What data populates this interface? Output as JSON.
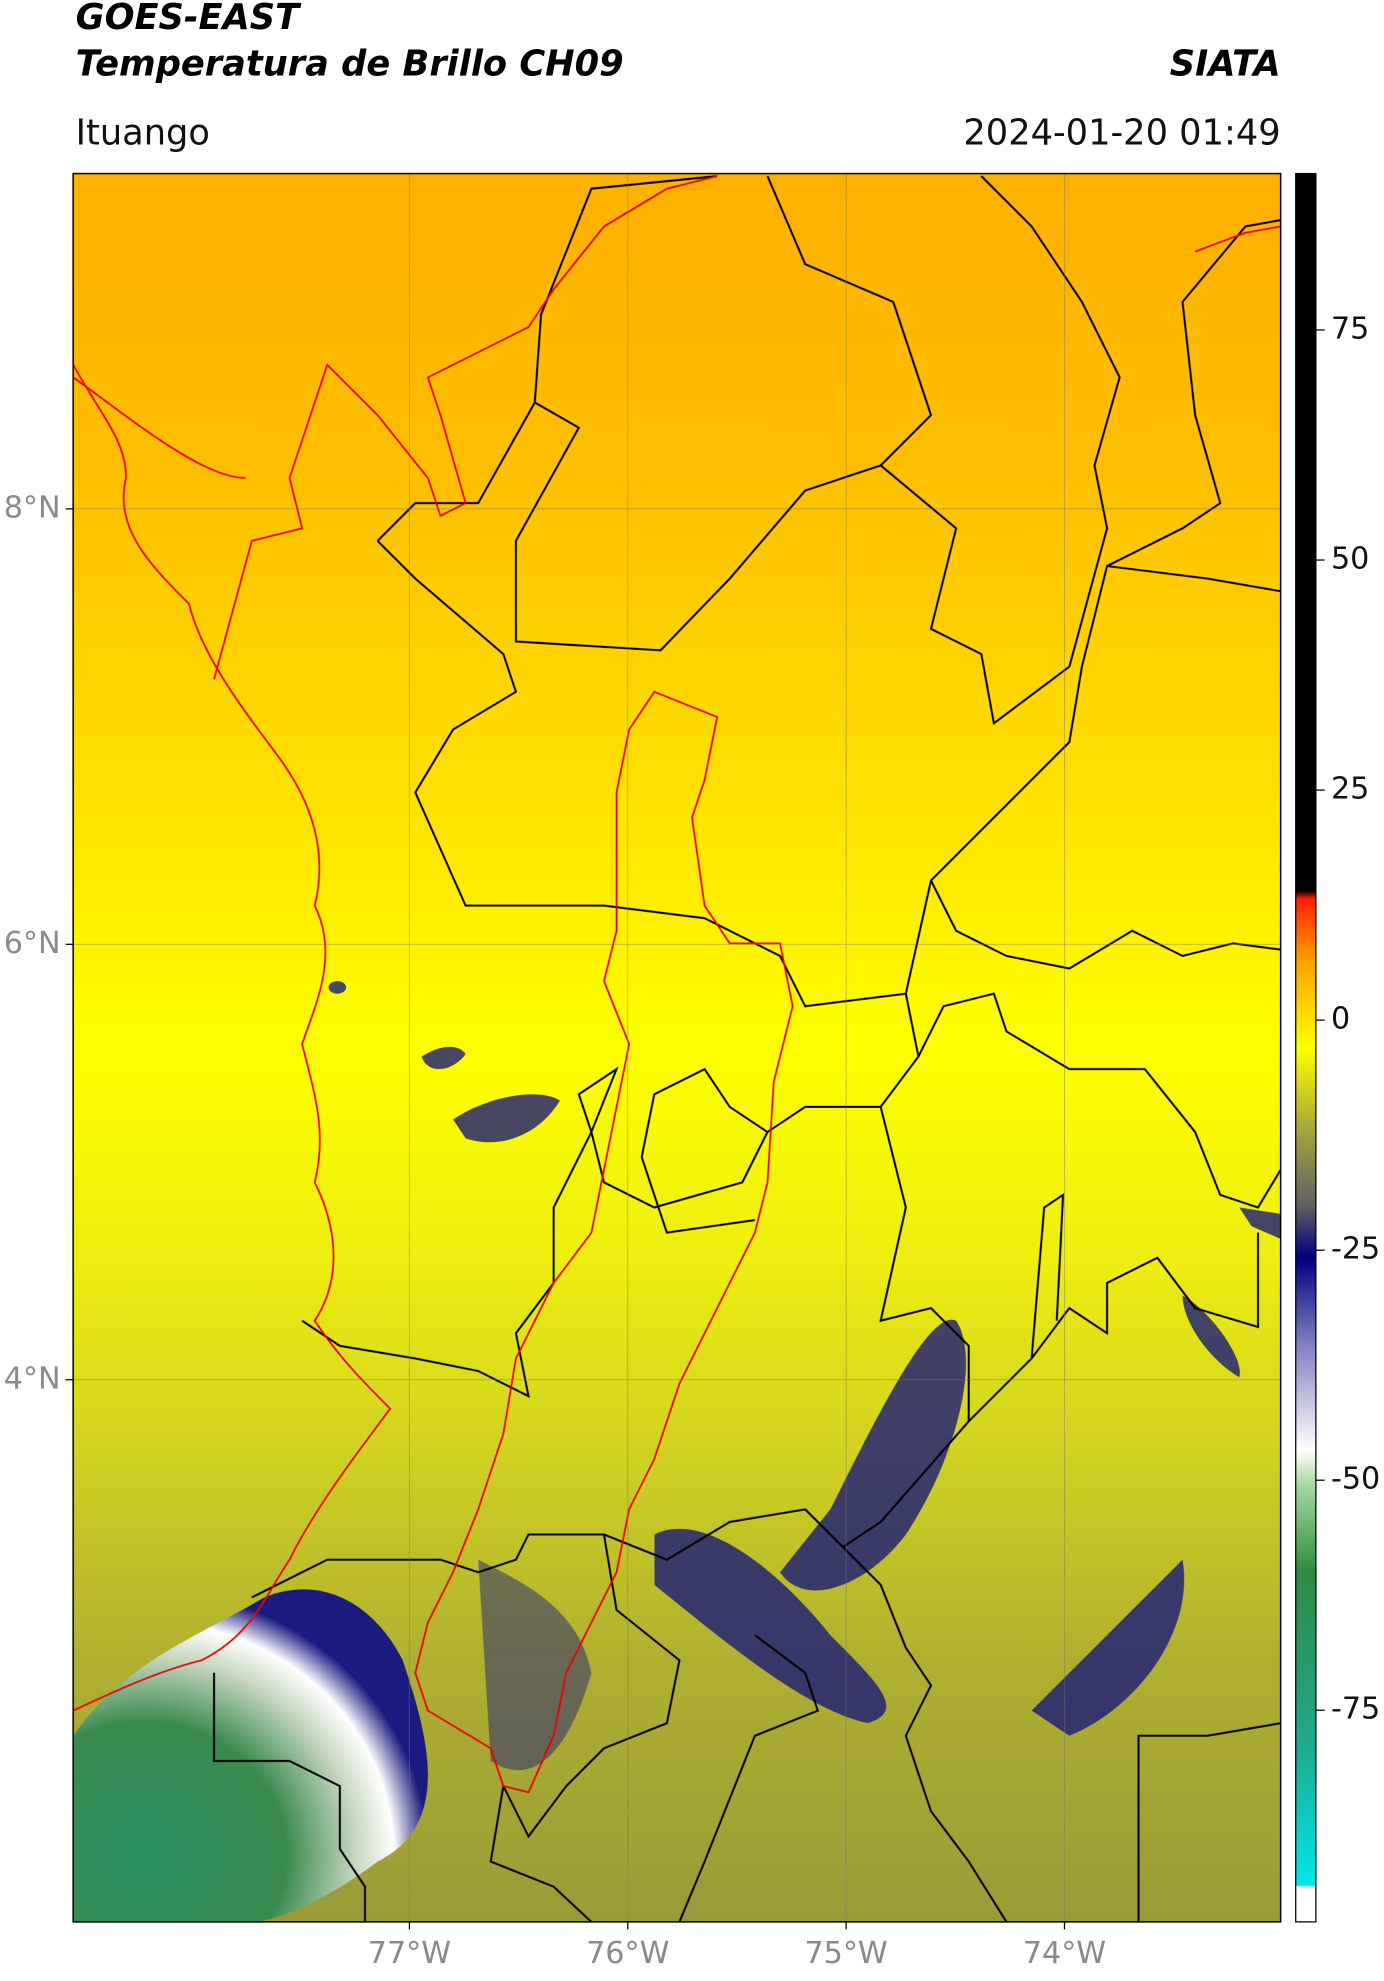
{
  "header": {
    "title": "GOES-EAST",
    "subtitle": "Temperatura de Brillo CH09",
    "source": "SIATA",
    "location": "Ituango",
    "datetime": "2024-01-20 01:49"
  },
  "map": {
    "lonlim": [
      -78.54,
      -73.01
    ],
    "latlim": [
      1.51,
      9.54
    ],
    "lonticks": [
      {
        "value": -77,
        "label": "77°W"
      },
      {
        "value": -76,
        "label": "76°W"
      },
      {
        "value": -75,
        "label": "75°W"
      },
      {
        "value": -74,
        "label": "74°W"
      }
    ],
    "latticks": [
      {
        "value": 8,
        "label": "8°N"
      },
      {
        "value": 6,
        "label": "6°N"
      },
      {
        "value": 4,
        "label": "4°N"
      }
    ],
    "grid": true
  },
  "colorbar": {
    "lim": [
      -98,
      92
    ],
    "ticks": [
      75,
      50,
      25,
      0,
      -25,
      -50,
      -75
    ]
  }
}
